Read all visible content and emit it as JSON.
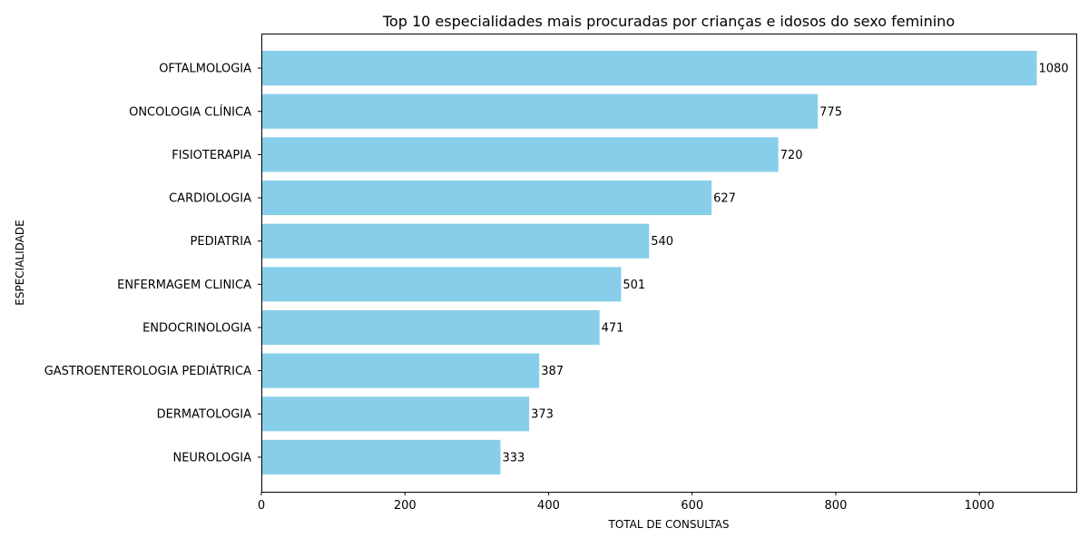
{
  "chart_data": {
    "type": "bar",
    "orientation": "horizontal",
    "title": "Top 10 especialidades mais procuradas por crianças e idosos do sexo feminino",
    "xlabel": "TOTAL DE CONSULTAS",
    "ylabel": "ESPECIALIDADE",
    "xlim": [
      0,
      1135
    ],
    "xticks": [
      0,
      200,
      400,
      600,
      800,
      1000
    ],
    "categories": [
      "OFTALMOLOGIA",
      "ONCOLOGIA CLÍNICA",
      "FISIOTERAPIA",
      "CARDIOLOGIA",
      "PEDIATRIA",
      "ENFERMAGEM CLINICA",
      "ENDOCRINOLOGIA",
      "GASTROENTEROLOGIA PEDIÁTRICA",
      "DERMATOLOGIA",
      "NEUROLOGIA"
    ],
    "values": [
      1080,
      775,
      720,
      627,
      540,
      501,
      471,
      387,
      373,
      333
    ],
    "data_labels": [
      "1080",
      "775",
      "720",
      "627",
      "540",
      "501",
      "471",
      "387",
      "373",
      "333"
    ],
    "bar_color": "#87ceeb",
    "grid": false,
    "legend": "none"
  }
}
